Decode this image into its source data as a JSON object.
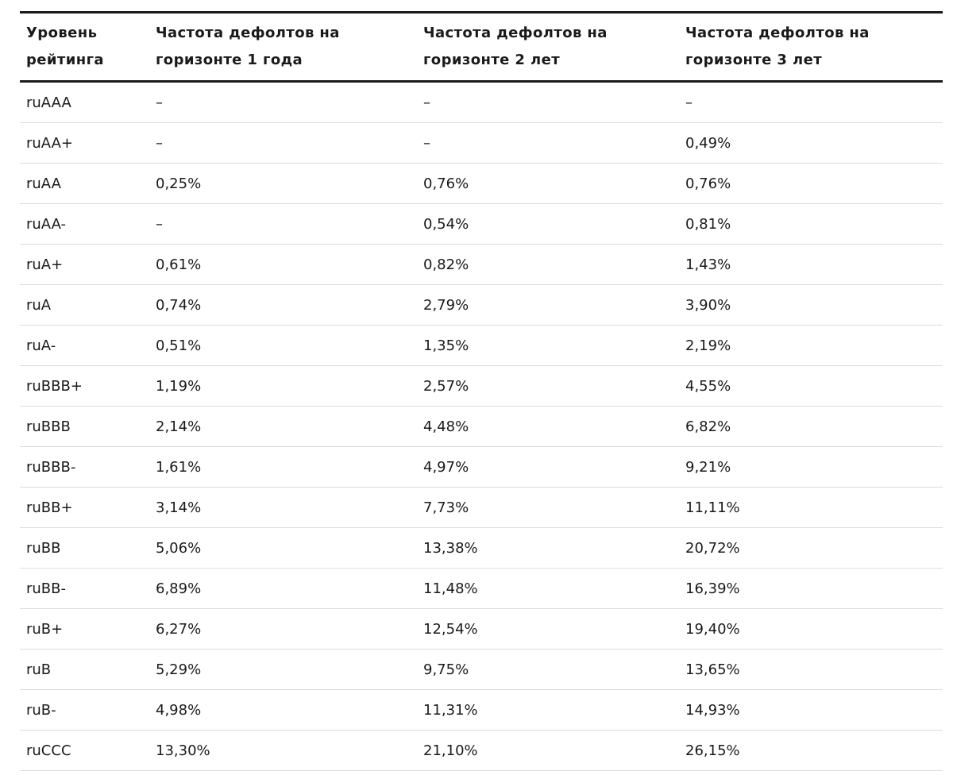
{
  "table": {
    "header": [
      "Уровень рейтинга",
      "Частота дефолтов на горизонте 1 года",
      "Частота дефолтов на горизонте 2 лет",
      "Частота дефолтов на горизонте 3 лет"
    ],
    "rows": [
      [
        "ruAAA",
        "–",
        "–",
        "–"
      ],
      [
        "ruAA+",
        "–",
        "–",
        "0,49%"
      ],
      [
        "ruAA",
        "0,25%",
        "0,76%",
        "0,76%"
      ],
      [
        "ruAA-",
        "–",
        "0,54%",
        "0,81%"
      ],
      [
        "ruA+",
        "0,61%",
        "0,82%",
        "1,43%"
      ],
      [
        "ruA",
        "0,74%",
        "2,79%",
        "3,90%"
      ],
      [
        "ruA-",
        "0,51%",
        "1,35%",
        "2,19%"
      ],
      [
        "ruBBB+",
        "1,19%",
        "2,57%",
        "4,55%"
      ],
      [
        "ruBBB",
        "2,14%",
        "4,48%",
        "6,82%"
      ],
      [
        "ruBBB-",
        "1,61%",
        "4,97%",
        "9,21%"
      ],
      [
        "ruBB+",
        "3,14%",
        "7,73%",
        "11,11%"
      ],
      [
        "ruBB",
        "5,06%",
        "13,38%",
        "20,72%"
      ],
      [
        "ruBB-",
        "6,89%",
        "11,48%",
        "16,39%"
      ],
      [
        "ruB+",
        "6,27%",
        "12,54%",
        "19,40%"
      ],
      [
        "ruB",
        "5,29%",
        "9,75%",
        "13,65%"
      ],
      [
        "ruB-",
        "4,98%",
        "11,31%",
        "14,93%"
      ],
      [
        "ruCCC",
        "13,30%",
        "21,10%",
        "26,15%"
      ]
    ]
  }
}
